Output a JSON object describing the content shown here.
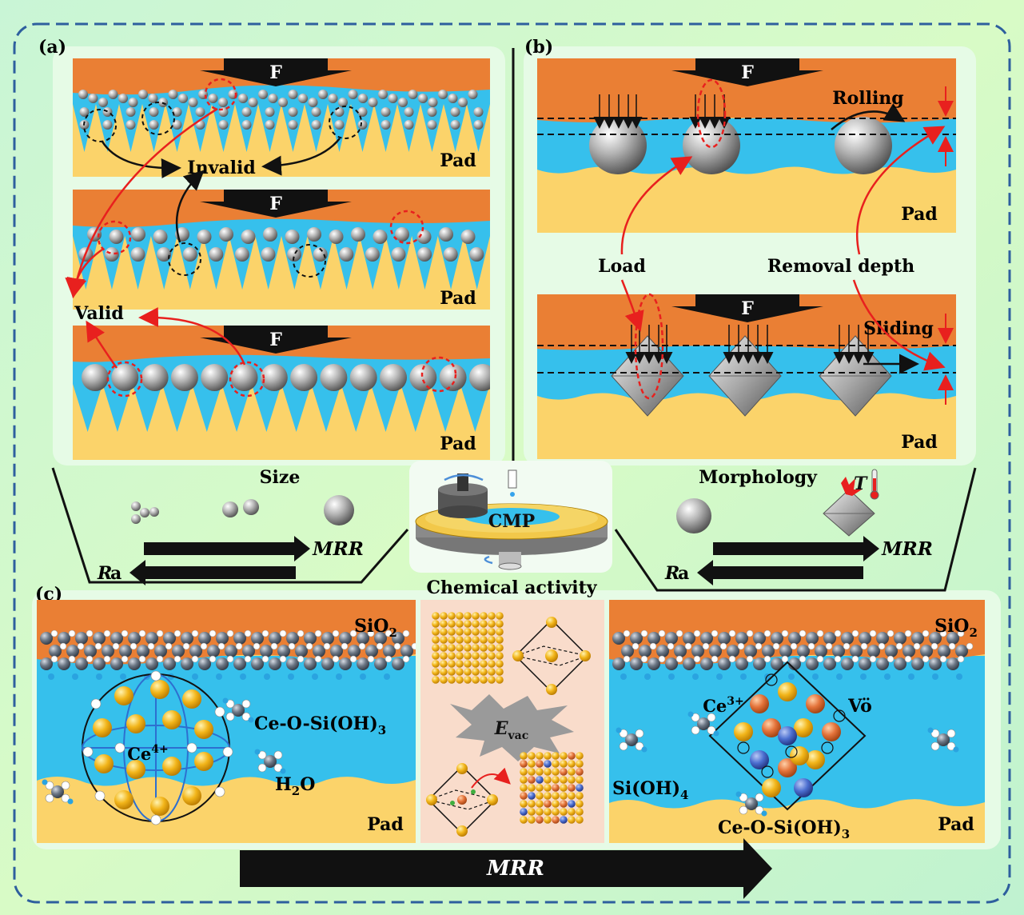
{
  "panel_a": {
    "label": "(a)",
    "force": "F",
    "pad": "Pad",
    "invalid": "Invalid",
    "valid": "Valid"
  },
  "panel_b": {
    "label": "(b)",
    "force": "F",
    "pad": "Pad",
    "rolling": "Rolling",
    "sliding": "Sliding",
    "load": "Load",
    "removal_depth": "Removal depth"
  },
  "middle": {
    "size": "Size",
    "morphology": "Morphology",
    "cmp": "CMP",
    "chemical_activity": "Chemical activity",
    "mrr": "MRR",
    "ra_R": "R",
    "ra_a": "a",
    "temperature": "T"
  },
  "panel_c": {
    "label": "(c)",
    "sio2_main": "SiO",
    "sio2_sub": "2",
    "pad": "Pad",
    "ce4_main": "Ce",
    "ce4_sup": "4+",
    "ce_o_si_main": "Ce-O-Si(OH)",
    "ce_o_si_sub": "3",
    "h2o_main": "H",
    "h2o_sub": "2",
    "h2o_end": "O",
    "evac_main": "E",
    "evac_sub": "vac",
    "ce3_main": "Ce",
    "ce3_sup": "3+",
    "vo": "Vö",
    "sioh4_main": "Si(OH)",
    "sioh4_sub": "4",
    "mrr": "MRR"
  },
  "colors": {
    "wafer": "#ea7f34",
    "slurry": "#36c0ec",
    "pad": "#fbd36a",
    "red": "#e8201e",
    "dash_frame": "#2e5f9e",
    "inner_bg": "#e8fbe7"
  }
}
